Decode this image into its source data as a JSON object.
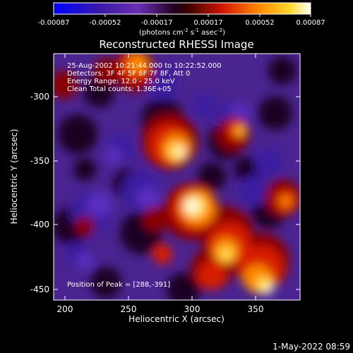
{
  "colorbar": {
    "tick_labels": [
      "-0.00087",
      "-0.00052",
      "-0.00017",
      "0.00017",
      "0.00052",
      "0.00087"
    ],
    "units_prefix": "(photons cm",
    "units_exp1": "-2",
    "units_mid1": " s",
    "units_exp2": "-1",
    "units_mid2": " asec",
    "units_exp3": "-2",
    "units_suffix": ")"
  },
  "plot": {
    "title": "Reconstructed RHESSI Image",
    "info_lines": [
      "25-Aug-2002 10:21:44.000 to 10:22:52.000",
      "Detectors: 3F 4F 5F 6F 7F 8F, Att 0",
      "Energy Range: 12.0 - 25.0 keV",
      "Clean     Total counts: 1.36E+05"
    ],
    "peak_label": "Position of Peak = [288,-391]",
    "x_label": "Heliocentric X (arcsec)",
    "y_label": "Heliocentric Y (arcsec)",
    "x_ticks": [
      "200",
      "250",
      "300",
      "350"
    ],
    "y_ticks": [
      "-300",
      "-350",
      "-400",
      "-450"
    ]
  },
  "footer": {
    "timestamp": "1-May-2022 08:59"
  },
  "colors": {
    "background": "#000000",
    "colormap": [
      "#0000ff",
      "#3a1aa8",
      "#5a2fb8",
      "#8a2ea0",
      "#000000",
      "#7a0000",
      "#d51800",
      "#ff7a00",
      "#ffd02a",
      "#ffffe0"
    ]
  }
}
